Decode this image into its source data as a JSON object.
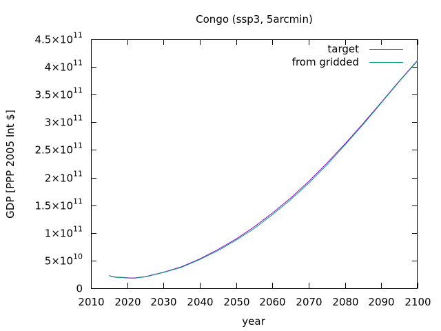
{
  "chart_data": {
    "type": "line",
    "title": "Congo (ssp3, 5arcmin)",
    "xlabel": "year",
    "ylabel": "GDP [PPP 2005 Int $]",
    "xlim": [
      2010,
      2100
    ],
    "ylim": [
      0,
      450000000000
    ],
    "grid": false,
    "legend_position": "top-right",
    "x_ticks": [
      2010,
      2020,
      2030,
      2040,
      2050,
      2060,
      2070,
      2080,
      2090,
      2100
    ],
    "x_tick_labels": [
      "2010",
      "2020",
      "2030",
      "2040",
      "2050",
      "2060",
      "2070",
      "2080",
      "2090",
      "2100"
    ],
    "y_ticks": [
      0,
      50000000000,
      100000000000,
      150000000000,
      200000000000,
      250000000000,
      300000000000,
      350000000000,
      400000000000,
      450000000000
    ],
    "y_tick_labels": [
      {
        "mant": "0",
        "exp": ""
      },
      {
        "mant": "5×10",
        "exp": "10"
      },
      {
        "mant": "1×10",
        "exp": "11"
      },
      {
        "mant": "1.5×10",
        "exp": "11"
      },
      {
        "mant": "2×10",
        "exp": "11"
      },
      {
        "mant": "2.5×10",
        "exp": "11"
      },
      {
        "mant": "3×10",
        "exp": "11"
      },
      {
        "mant": "3.5×10",
        "exp": "11"
      },
      {
        "mant": "4×10",
        "exp": "11"
      },
      {
        "mant": "4.5×10",
        "exp": "11"
      }
    ],
    "series": [
      {
        "name": "target",
        "color": "#9400d3",
        "x": [
          2015,
          2016,
          2017,
          2018,
          2019,
          2020,
          2021,
          2022,
          2023,
          2025,
          2030,
          2035,
          2040,
          2045,
          2050,
          2055,
          2060,
          2065,
          2070,
          2075,
          2080,
          2085,
          2090,
          2095,
          2100
        ],
        "y": [
          23000000000,
          21000000000,
          20000000000,
          20000000000,
          19500000000,
          19000000000,
          18500000000,
          18500000000,
          19500000000,
          21000000000,
          29000000000,
          39000000000,
          53000000000,
          70000000000,
          89000000000,
          111000000000,
          136000000000,
          163000000000,
          193000000000,
          226000000000,
          261000000000,
          298000000000,
          336000000000,
          375000000000,
          412000000000
        ]
      },
      {
        "name": "from gridded",
        "color": "#009e73",
        "x": [
          2015,
          2016,
          2017,
          2018,
          2019,
          2020,
          2021,
          2022,
          2023,
          2025,
          2030,
          2035,
          2040,
          2045,
          2050,
          2055,
          2060,
          2065,
          2070,
          2075,
          2080,
          2085,
          2090,
          2095,
          2100
        ],
        "y": [
          22500000000,
          20500000000,
          19500000000,
          19500000000,
          19000000000,
          18500000000,
          18000000000,
          18000000000,
          19000000000,
          20500000000,
          28500000000,
          38000000000,
          52000000000,
          68000000000,
          87000000000,
          108000000000,
          133000000000,
          160000000000,
          190000000000,
          223000000000,
          259000000000,
          296000000000,
          335000000000,
          374000000000,
          411000000000
        ]
      }
    ]
  }
}
